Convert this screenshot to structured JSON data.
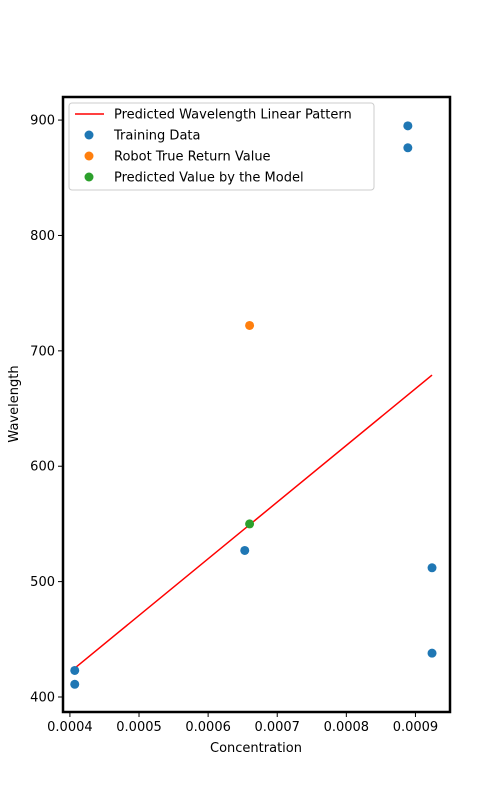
{
  "chart_data": {
    "type": "scatter",
    "xlabel": "Concentration",
    "ylabel": "Wavelength",
    "xlim": [
      0.00039,
      0.00095
    ],
    "ylim": [
      387,
      920
    ],
    "x_ticks": [
      0.0004,
      0.0005,
      0.0006,
      0.0007,
      0.0008,
      0.0009
    ],
    "x_tick_labels": [
      "0.0004",
      "0.0005",
      "0.0006",
      "0.0007",
      "0.0008",
      "0.0009"
    ],
    "y_ticks": [
      400,
      500,
      600,
      700,
      800,
      900
    ],
    "y_tick_labels": [
      "400",
      "500",
      "600",
      "700",
      "800",
      "900"
    ],
    "grid": false,
    "legend_position": "top-left",
    "series": [
      {
        "name": "Predicted Wavelength Linear Pattern",
        "kind": "line",
        "color": "#ff0000",
        "x": [
          0.000407,
          0.000924
        ],
        "y": [
          425,
          679
        ]
      },
      {
        "name": "Training Data",
        "kind": "scatter",
        "color": "#1f77b4",
        "x": [
          0.000407,
          0.000407,
          0.000653,
          0.000889,
          0.000889,
          0.000924,
          0.000924
        ],
        "y": [
          411,
          423,
          527,
          876,
          895,
          512,
          438
        ]
      },
      {
        "name": "Robot True Return Value",
        "kind": "scatter",
        "color": "#ff7f0e",
        "x": [
          0.00066
        ],
        "y": [
          722
        ]
      },
      {
        "name": "Predicted Value by the Model",
        "kind": "scatter",
        "color": "#2ca02c",
        "x": [
          0.00066
        ],
        "y": [
          550
        ]
      }
    ]
  }
}
